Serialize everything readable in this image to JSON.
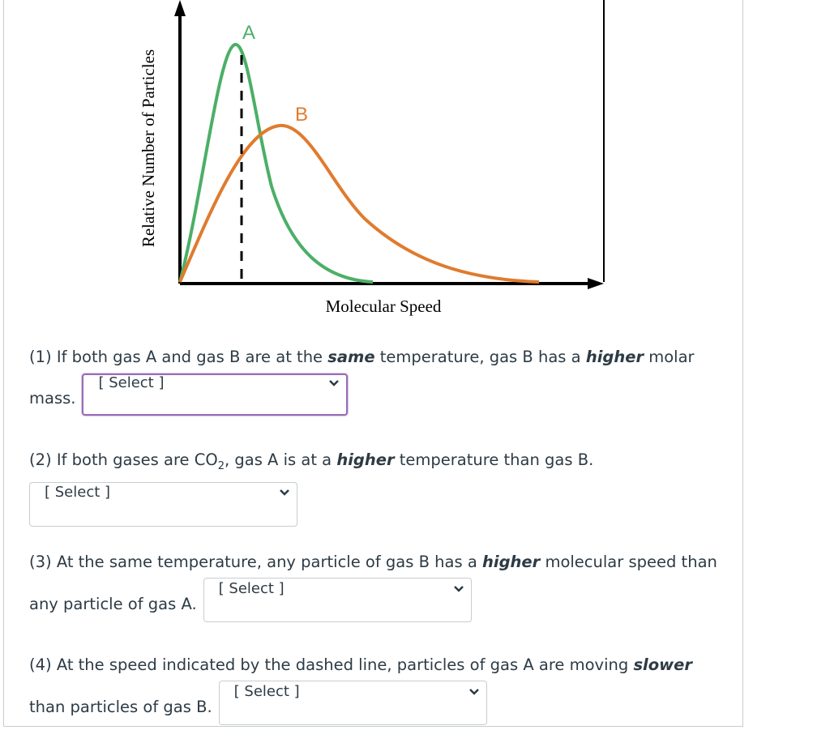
{
  "figure": {
    "curve_a_label": "A",
    "curve_b_label": "B",
    "y_axis_label": "Relative Number of Particles",
    "x_axis_label": "Molecular Speed"
  },
  "questions": [
    {
      "segments": [
        "(1) If both gas A and gas B are at the ",
        "same",
        " temperature, gas B has a ",
        "higher",
        " molar mass."
      ],
      "select": "[ Select ]"
    },
    {
      "segments": [
        "(2) If both gases are CO",
        "2",
        ", gas A is at a ",
        "higher",
        " temperature than gas B."
      ],
      "select": "[ Select ]"
    },
    {
      "segments": [
        "(3) At the same temperature, any particle of gas B has a ",
        "higher",
        " molecular speed than any particle of gas A."
      ],
      "select": "[ Select ]"
    },
    {
      "segments": [
        "(4) At the speed indicated by the dashed line, particles of gas A are moving ",
        "slower",
        " than particles of gas B."
      ],
      "select": "[ Select ]"
    }
  ]
}
